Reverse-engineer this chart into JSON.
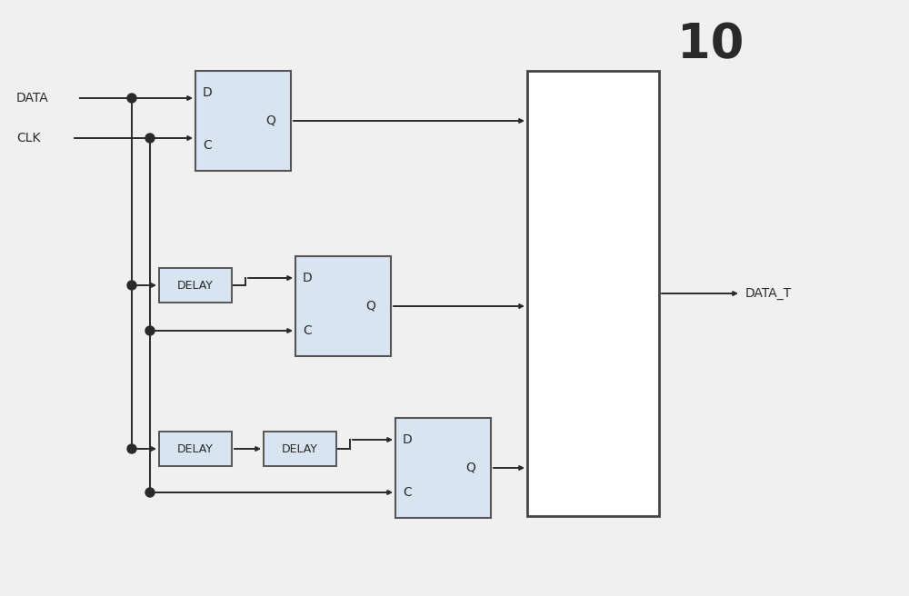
{
  "bg_color": "#f0f0f0",
  "line_color": "#2a2a2a",
  "box_fill": "#d8e4f0",
  "box_edge": "#555555",
  "white_fill": "#ffffff",
  "white_edge": "#444444",
  "label_DATA": "DATA",
  "label_CLK": "CLK",
  "label_DATA_T": "DATA_T",
  "label_10": "10",
  "label_D": "D",
  "label_C": "C",
  "label_Q": "Q",
  "label_DELAY": "DELAY",
  "figw": 10.0,
  "figh": 6.56,
  "dpi": 100
}
